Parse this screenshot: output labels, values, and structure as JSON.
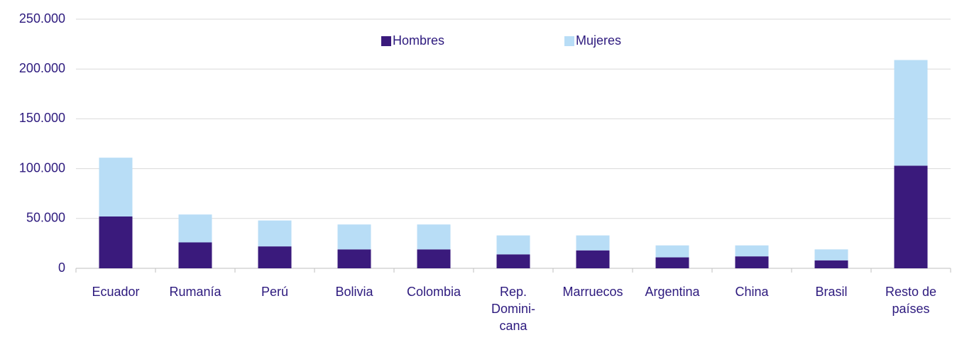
{
  "chart_data": {
    "type": "stacked_bar",
    "categories": [
      "Ecuador",
      "Rumanía",
      "Perú",
      "Bolivia",
      "Colombia",
      "Rep.\nDomini-\ncana",
      "Marruecos",
      "Argentina",
      "China",
      "Brasil",
      "Resto de\npaíses"
    ],
    "series": [
      {
        "name": "Hombres",
        "color": "#3a1a7c",
        "values": [
          52000,
          26000,
          22000,
          19000,
          19000,
          14000,
          18000,
          11000,
          12000,
          8000,
          103000
        ]
      },
      {
        "name": "Mujeres",
        "color": "#b8ddf6",
        "values": [
          59000,
          28000,
          26000,
          25000,
          25000,
          19000,
          15000,
          12000,
          11000,
          11000,
          106000
        ]
      }
    ],
    "ylim": [
      0,
      250000
    ],
    "yticks": [
      0,
      {
        "value": 50000,
        "label": "50.000"
      },
      {
        "value": 100000,
        "label": "100.000"
      },
      {
        "value": 150000,
        "label": "150.000"
      },
      {
        "value": 200000,
        "label": "200.000"
      },
      {
        "value": 250000,
        "label": "250.000"
      }
    ],
    "grid": true,
    "legend": "top"
  }
}
